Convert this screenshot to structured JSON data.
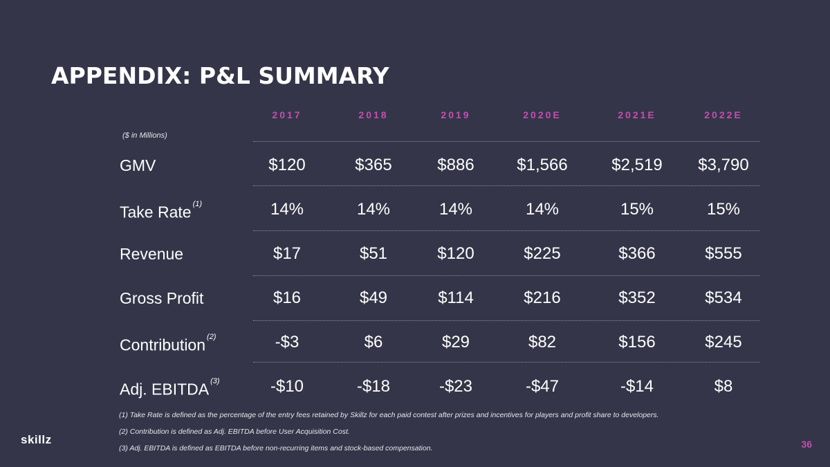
{
  "title": "APPENDIX: P&L SUMMARY",
  "units": "($ in Millions)",
  "columns": [
    "2017",
    "2018",
    "2019",
    "2020E",
    "2021E",
    "2022E"
  ],
  "rows": [
    {
      "label": "GMV",
      "note": "",
      "values": [
        "$120",
        "$365",
        "$886",
        "$1,566",
        "$2,519",
        "$3,790"
      ]
    },
    {
      "label": "Take Rate",
      "note": "(1)",
      "values": [
        "14%",
        "14%",
        "14%",
        "14%",
        "15%",
        "15%"
      ]
    },
    {
      "label": "Revenue",
      "note": "",
      "values": [
        "$17",
        "$51",
        "$120",
        "$225",
        "$366",
        "$555"
      ]
    },
    {
      "label": "Gross Profit",
      "note": "",
      "values": [
        "$16",
        "$49",
        "$114",
        "$216",
        "$352",
        "$534"
      ]
    },
    {
      "label": "Contribution",
      "note": "(2)",
      "values": [
        "-$3",
        "$6",
        "$29",
        "$82",
        "$156",
        "$245"
      ]
    },
    {
      "label": "Adj. EBITDA",
      "note": "(3)",
      "values": [
        "-$10",
        "-$18",
        "-$23",
        "-$47",
        "-$14",
        "$8"
      ]
    }
  ],
  "footnotes": [
    "(1) Take Rate is defined as the percentage of the entry fees retained by Skillz for each paid contest after prizes and incentives for players and profit share to developers.",
    "(2) Contribution is defined as Adj. EBITDA before User Acquisition Cost.",
    "(3) Adj. EBITDA is defined as EBITDA before non-recurring items and stock-based compensation."
  ],
  "logo": "skillz",
  "page_number": "36",
  "colors": {
    "background": "#353549",
    "accent": "#c24fb0",
    "text": "#ffffff"
  }
}
